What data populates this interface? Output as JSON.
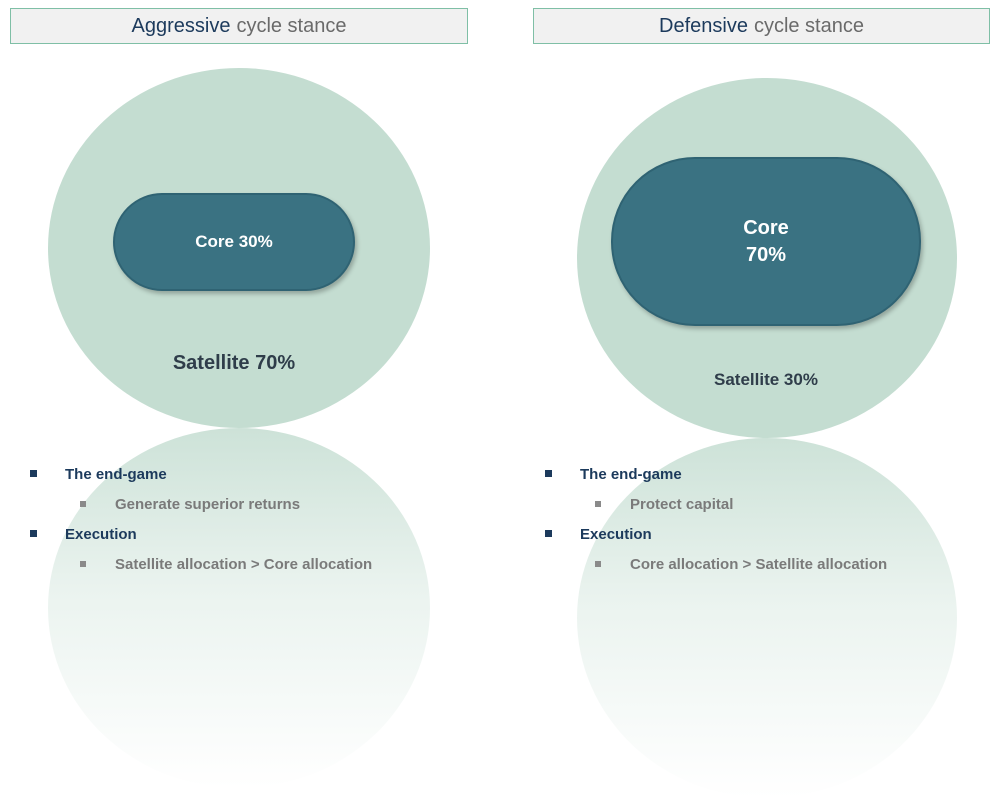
{
  "colors": {
    "circle": "#c4ddd1",
    "core": "#3a7282",
    "title_border": "#7fbfa6",
    "title_dark": "#1c3a5c"
  },
  "panels": [
    {
      "title_strong": "Aggressive",
      "title_light": "cycle stance",
      "core_line1": "Core 30%",
      "core_line2": "",
      "satellite": "Satellite 70%",
      "endgame_label": "The end-game",
      "endgame_item": "Generate superior returns",
      "execution_label": "Execution",
      "execution_item": "Satellite allocation > Core allocation"
    },
    {
      "title_strong": "Defensive",
      "title_light": "cycle stance",
      "core_line1": "Core",
      "core_line2": "70%",
      "satellite": "Satellite 30%",
      "endgame_label": "The end-game",
      "endgame_item": "Protect capital",
      "execution_label": "Execution",
      "execution_item": "Core allocation > Satellite allocation"
    }
  ]
}
